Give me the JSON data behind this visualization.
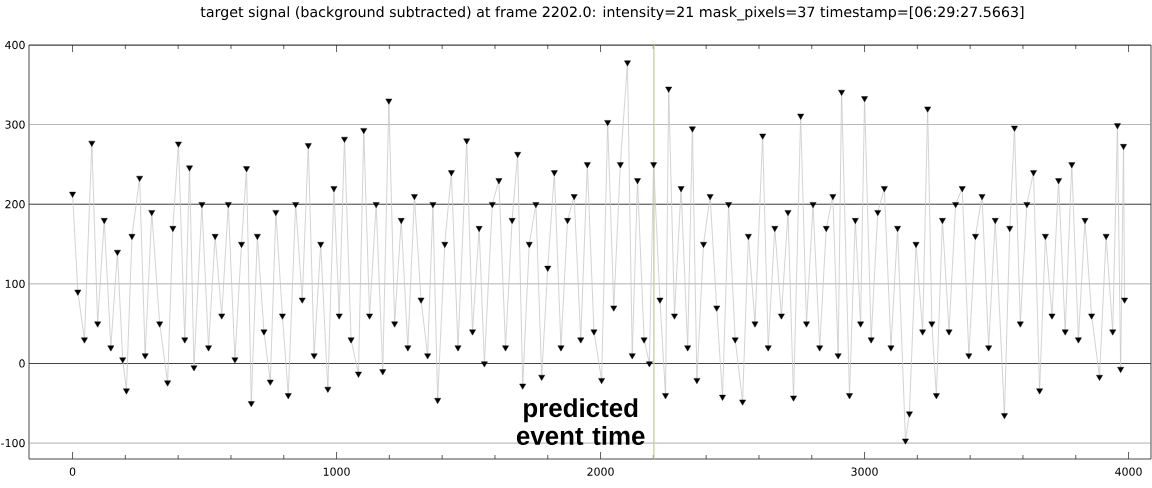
{
  "chart_data": {
    "type": "line",
    "title": "target signal (background subtracted) at frame 2202.0: intensity=21 mask_pixels=37 timestamp=[06:29:27.5663]",
    "x": [
      0,
      20,
      45,
      73,
      95,
      120,
      145,
      170,
      190,
      204,
      225,
      254,
      275,
      300,
      330,
      360,
      380,
      401,
      425,
      443,
      460,
      490,
      515,
      540,
      565,
      590,
      615,
      640,
      659,
      677,
      700,
      725,
      749,
      770,
      795,
      817,
      845,
      870,
      893,
      915,
      940,
      967,
      990,
      1010,
      1030,
      1055,
      1083,
      1103,
      1125,
      1150,
      1175,
      1198,
      1220,
      1245,
      1270,
      1295,
      1320,
      1345,
      1365,
      1383,
      1410,
      1435,
      1460,
      1493,
      1515,
      1540,
      1560,
      1590,
      1615,
      1640,
      1665,
      1686,
      1705,
      1730,
      1755,
      1777,
      1800,
      1825,
      1850,
      1875,
      1900,
      1925,
      1950,
      1975,
      2004,
      2027,
      2050,
      2075,
      2102,
      2120,
      2140,
      2165,
      2185,
      2201,
      2225,
      2246,
      2258,
      2280,
      2305,
      2330,
      2348,
      2365,
      2390,
      2415,
      2440,
      2462,
      2485,
      2510,
      2538,
      2560,
      2585,
      2614,
      2635,
      2660,
      2685,
      2710,
      2731,
      2758,
      2780,
      2805,
      2830,
      2855,
      2880,
      2900,
      2913,
      2943,
      2965,
      2985,
      3000,
      3025,
      3050,
      3075,
      3100,
      3125,
      3155,
      3170,
      3195,
      3220,
      3239,
      3255,
      3272,
      3295,
      3320,
      3345,
      3370,
      3395,
      3420,
      3445,
      3470,
      3495,
      3530,
      3550,
      3568,
      3590,
      3615,
      3640,
      3663,
      3685,
      3710,
      3735,
      3760,
      3785,
      3810,
      3835,
      3860,
      3890,
      3915,
      3940,
      3958,
      3970,
      3981,
      3985
    ],
    "series": [
      {
        "color": "#c8c8c8",
        "marker": "none",
        "values": [
          213,
          90,
          30,
          277,
          50,
          180,
          20,
          140,
          5,
          -34,
          160,
          233,
          10,
          190,
          50,
          -24,
          170,
          276,
          30,
          246,
          -5,
          200,
          20,
          160,
          60,
          200,
          5,
          150,
          245,
          -50,
          160,
          40,
          -23,
          190,
          60,
          -40,
          200,
          80,
          274,
          10,
          150,
          -32,
          220,
          60,
          282,
          30,
          -13,
          293,
          60,
          200,
          -10,
          330,
          50,
          180,
          20,
          210,
          80,
          10,
          200,
          -46,
          150,
          240,
          20,
          280,
          40,
          170,
          0,
          200,
          230,
          20,
          180,
          263,
          -28,
          150,
          200,
          -17,
          120,
          240,
          20,
          180,
          210,
          30,
          250,
          40,
          -21,
          303,
          70,
          250,
          378,
          10,
          230,
          30,
          0,
          250,
          80,
          -40,
          345,
          60,
          220,
          20,
          295,
          -21,
          150,
          210,
          70,
          -42,
          200,
          30,
          -48,
          160,
          50,
          286,
          20,
          170,
          60,
          190,
          -43,
          311,
          50,
          200,
          20,
          170,
          210,
          10,
          341,
          -40,
          180,
          50,
          333,
          30,
          190,
          220,
          20,
          170,
          -97,
          -63,
          150,
          40,
          320,
          50,
          -40,
          180,
          40,
          200,
          220,
          10,
          160,
          210,
          20,
          180,
          -65,
          170,
          296,
          50,
          200,
          240,
          -34,
          160,
          60,
          230,
          40,
          250,
          30,
          180,
          60,
          -17,
          160,
          40,
          299,
          -7,
          273,
          80
        ]
      },
      {
        "type": "scatter",
        "color": "#000000",
        "marker": "triangle",
        "values": [
          213,
          90,
          30,
          277,
          50,
          180,
          20,
          140,
          5,
          -34,
          160,
          233,
          10,
          190,
          50,
          -24,
          170,
          276,
          30,
          246,
          -5,
          200,
          20,
          160,
          60,
          200,
          5,
          150,
          245,
          -50,
          160,
          40,
          -23,
          190,
          60,
          -40,
          200,
          80,
          274,
          10,
          150,
          -32,
          220,
          60,
          282,
          30,
          -13,
          293,
          60,
          200,
          -10,
          330,
          50,
          180,
          20,
          210,
          80,
          10,
          200,
          -46,
          150,
          240,
          20,
          280,
          40,
          170,
          0,
          200,
          230,
          20,
          180,
          263,
          -28,
          150,
          200,
          -17,
          120,
          240,
          20,
          180,
          210,
          30,
          250,
          40,
          -21,
          303,
          70,
          250,
          378,
          10,
          230,
          30,
          0,
          250,
          80,
          -40,
          345,
          60,
          220,
          20,
          295,
          -21,
          150,
          210,
          70,
          -42,
          200,
          30,
          -48,
          160,
          50,
          286,
          20,
          170,
          60,
          190,
          -43,
          311,
          50,
          200,
          20,
          170,
          210,
          10,
          341,
          -40,
          180,
          50,
          333,
          30,
          190,
          220,
          20,
          170,
          -97,
          -63,
          150,
          40,
          320,
          50,
          -40,
          180,
          40,
          200,
          220,
          10,
          160,
          210,
          20,
          180,
          -65,
          170,
          296,
          50,
          200,
          240,
          -34,
          160,
          60,
          230,
          40,
          250,
          30,
          180,
          60,
          -17,
          160,
          40,
          299,
          -7,
          273,
          80
        ]
      }
    ],
    "xlim": [
      -165,
      4085
    ],
    "ylim": [
      -120,
      400
    ],
    "xticks": [
      0,
      {
        "value": 200,
        "label": null
      },
      {
        "value": 400,
        "label": null
      },
      {
        "value": 600,
        "label": null
      },
      {
        "value": 800,
        "label": null
      },
      1000,
      {
        "value": 1200,
        "label": null
      },
      {
        "value": 1400,
        "label": null
      },
      {
        "value": 1600,
        "label": null
      },
      {
        "value": 1800,
        "label": null
      },
      2000,
      {
        "value": 2200,
        "label": null
      },
      {
        "value": 2400,
        "label": null
      },
      {
        "value": 2600,
        "label": null
      },
      {
        "value": 2800,
        "label": null
      },
      3000,
      {
        "value": 3200,
        "label": null
      },
      {
        "value": 3400,
        "label": null
      },
      {
        "value": 3600,
        "label": null
      },
      {
        "value": 3800,
        "label": null
      },
      4000
    ],
    "yticks": [
      -100,
      0,
      100,
      200,
      300,
      400
    ],
    "grid": "y",
    "line_style": "solid",
    "ref_lines": [
      {
        "axis": "x",
        "value": 2202,
        "color": "#c8c890"
      }
    ],
    "annotations": [
      {
        "text": "predicted event time",
        "x": 2202,
        "y": -73
      }
    ]
  }
}
